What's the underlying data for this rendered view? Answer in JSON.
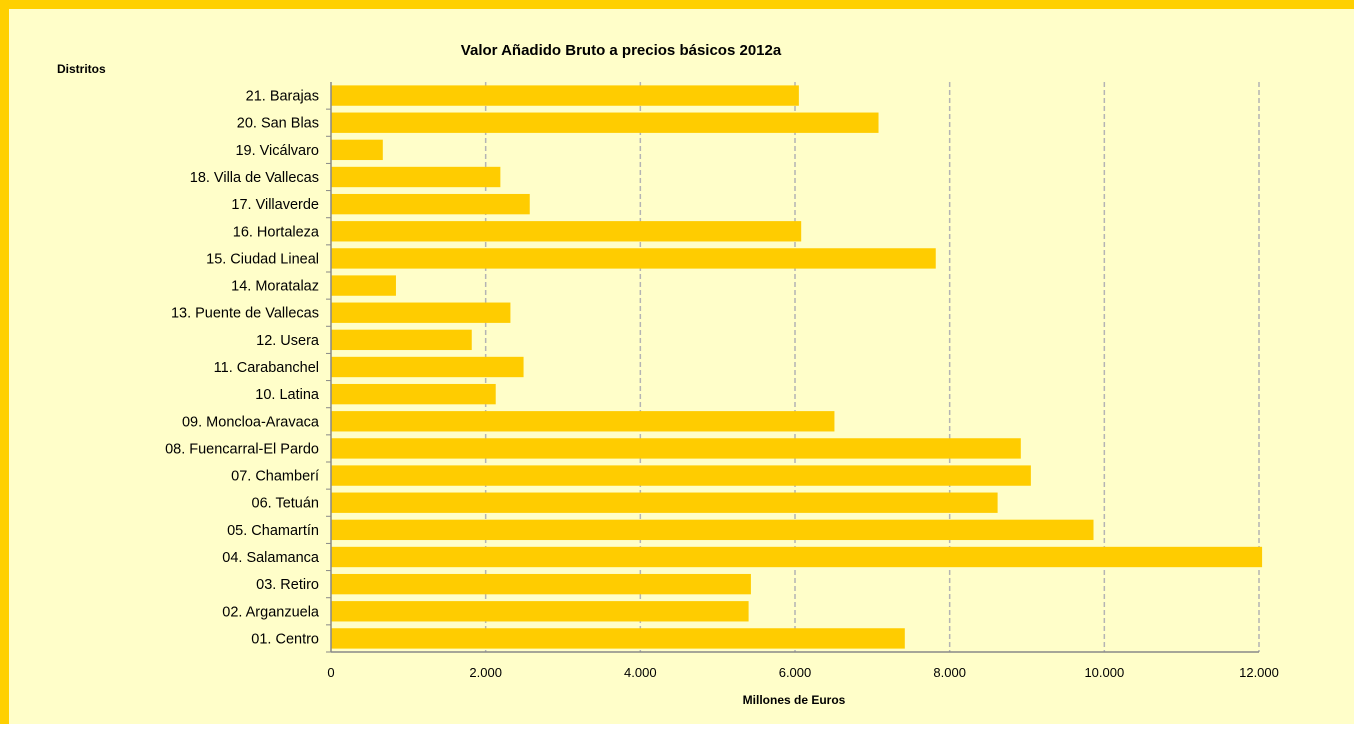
{
  "chart_data": {
    "type": "bar",
    "orientation": "horizontal",
    "title": "Valor Añadido Bruto a precios básicos 2012a",
    "ylabel": "Distritos",
    "xlabel": "Millones de Euros",
    "categories": [
      "01. Centro",
      "02. Arganzuela",
      "03. Retiro",
      "04. Salamanca",
      "05. Chamartín",
      "06. Tetuán",
      "07. Chamberí",
      "08. Fuencarral-El Pardo",
      "09. Moncloa-Aravaca",
      "10. Latina",
      "11. Carabanchel",
      "12. Usera",
      "13. Puente de Vallecas",
      "14. Moratalaz",
      "15. Ciudad Lineal",
      "16. Hortaleza",
      "17. Villaverde",
      "18. Villa de Vallecas",
      "19. Vicálvaro",
      "20. San Blas",
      "21. Barajas"
    ],
    "values": [
      7420,
      5400,
      5430,
      12040,
      9860,
      8620,
      9050,
      8920,
      6510,
      2130,
      2490,
      1820,
      2320,
      840,
      7820,
      6080,
      2570,
      2190,
      670,
      7080,
      6050
    ],
    "xlim": [
      0,
      12000
    ],
    "xticks": [
      0,
      2000,
      4000,
      6000,
      8000,
      10000,
      12000
    ],
    "xtick_labels": [
      "0",
      "2.000",
      "4.000",
      "6.000",
      "8.000",
      "10.000",
      "12.000"
    ],
    "grid": "vertical dashed",
    "legend": "none",
    "colors": {
      "bar": "#ffcc00",
      "background": "#fffec9",
      "frame": "#ffd000",
      "grid": "#b4b4b4"
    }
  }
}
